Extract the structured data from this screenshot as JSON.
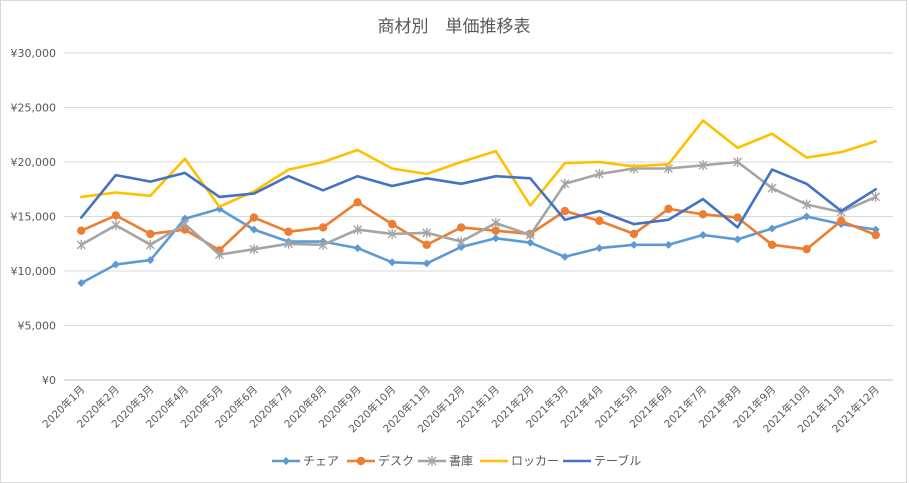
{
  "chart_data": {
    "type": "line",
    "title": "商材別　単価推移表",
    "categories": [
      "2020年1月",
      "2020年2月",
      "2020年3月",
      "2020年4月",
      "2020年5月",
      "2020年6月",
      "2020年7月",
      "2020年8月",
      "2020年9月",
      "2020年10月",
      "2020年11月",
      "2020年12月",
      "2021年1月",
      "2021年2月",
      "2021年3月",
      "2021年4月",
      "2021年5月",
      "2021年6月",
      "2021年7月",
      "2021年8月",
      "2021年9月",
      "2021年10月",
      "2021年11月",
      "2021年12月"
    ],
    "ylim": [
      0,
      30000
    ],
    "ytick_values": [
      0,
      5000,
      10000,
      15000,
      20000,
      25000,
      30000
    ],
    "ytick_labels": [
      "¥0",
      "¥5,000",
      "¥10,000",
      "¥15,000",
      "¥20,000",
      "¥25,000",
      "¥30,000"
    ],
    "grid": true,
    "legend_position": "bottom",
    "series": [
      {
        "name": "チェア",
        "color": "#5b9bd5",
        "marker": "diamond",
        "values": [
          8900,
          10600,
          11000,
          14800,
          15700,
          13800,
          12700,
          12700,
          12100,
          10800,
          10700,
          12200,
          13000,
          12600,
          11300,
          12100,
          12400,
          12400,
          13300,
          12900,
          13900,
          15000,
          14300,
          13800
        ]
      },
      {
        "name": "デスク",
        "color": "#ed7d31",
        "marker": "circle",
        "values": [
          13700,
          15100,
          13400,
          13800,
          11900,
          14900,
          13600,
          14000,
          16300,
          14300,
          12400,
          14000,
          13700,
          13400,
          15500,
          14600,
          13400,
          15700,
          15200,
          14900,
          12400,
          12000,
          14600,
          13300
        ]
      },
      {
        "name": "書庫",
        "color": "#a5a5a5",
        "marker": "star",
        "values": [
          12400,
          14200,
          12400,
          14300,
          11500,
          12000,
          12500,
          12400,
          13800,
          13400,
          13500,
          12700,
          14400,
          13300,
          18000,
          18900,
          19400,
          19400,
          19700,
          20000,
          17600,
          16100,
          15400,
          16800
        ]
      },
      {
        "name": "ロッカー",
        "color": "#ffc000",
        "marker": "none",
        "values": [
          16800,
          17200,
          16900,
          20300,
          15900,
          17300,
          19300,
          20000,
          21100,
          19400,
          18900,
          20000,
          21000,
          16000,
          19900,
          20000,
          19600,
          19800,
          23800,
          21300,
          22600,
          20400,
          20900,
          21900
        ]
      },
      {
        "name": "テーブル",
        "color": "#4472c4",
        "marker": "none",
        "values": [
          14900,
          18800,
          18200,
          19000,
          16800,
          17100,
          18700,
          17400,
          18700,
          17800,
          18500,
          18000,
          18700,
          18500,
          14700,
          15500,
          14300,
          14700,
          16600,
          14000,
          19300,
          18000,
          15500,
          17500
        ]
      }
    ]
  }
}
